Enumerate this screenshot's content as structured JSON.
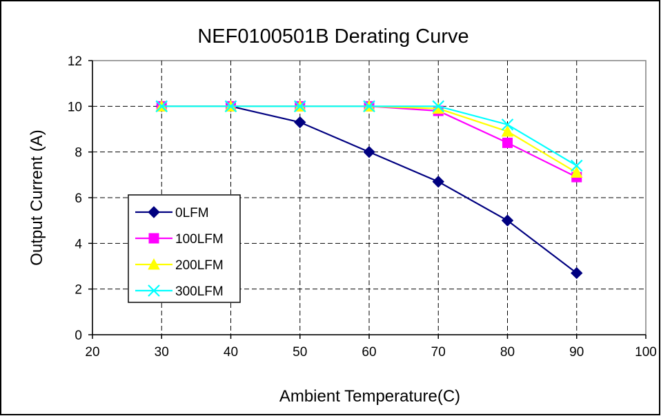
{
  "chart_data": {
    "type": "line",
    "title": "NEF0100501B Derating Curve",
    "xlabel": "Ambient Temperature(C)",
    "ylabel": "Output Current (A)",
    "xlim": [
      20,
      100
    ],
    "ylim": [
      0,
      12
    ],
    "x_ticks": [
      "20",
      "30",
      "40",
      "50",
      "60",
      "70",
      "80",
      "90",
      "100"
    ],
    "y_ticks": [
      "0",
      "2",
      "4",
      "6",
      "8",
      "10",
      "12"
    ],
    "grid": true,
    "legend_position": "left-middle",
    "x": [
      30,
      40,
      50,
      60,
      70,
      80,
      90
    ],
    "series": [
      {
        "name": "0LFM",
        "values": [
          10,
          10,
          9.3,
          8.0,
          6.7,
          5.0,
          2.7
        ],
        "color": "#000080",
        "marker": "diamond"
      },
      {
        "name": "100LFM",
        "values": [
          10,
          10,
          10,
          10,
          9.8,
          8.4,
          6.9
        ],
        "color": "#ff00ff",
        "marker": "square"
      },
      {
        "name": "200LFM",
        "values": [
          10,
          10,
          10,
          10,
          9.9,
          8.9,
          7.1
        ],
        "color": "#ffff00",
        "marker": "triangle"
      },
      {
        "name": "300LFM",
        "values": [
          10,
          10,
          10,
          10,
          10,
          9.2,
          7.4
        ],
        "color": "#00ffff",
        "marker": "x"
      }
    ]
  }
}
